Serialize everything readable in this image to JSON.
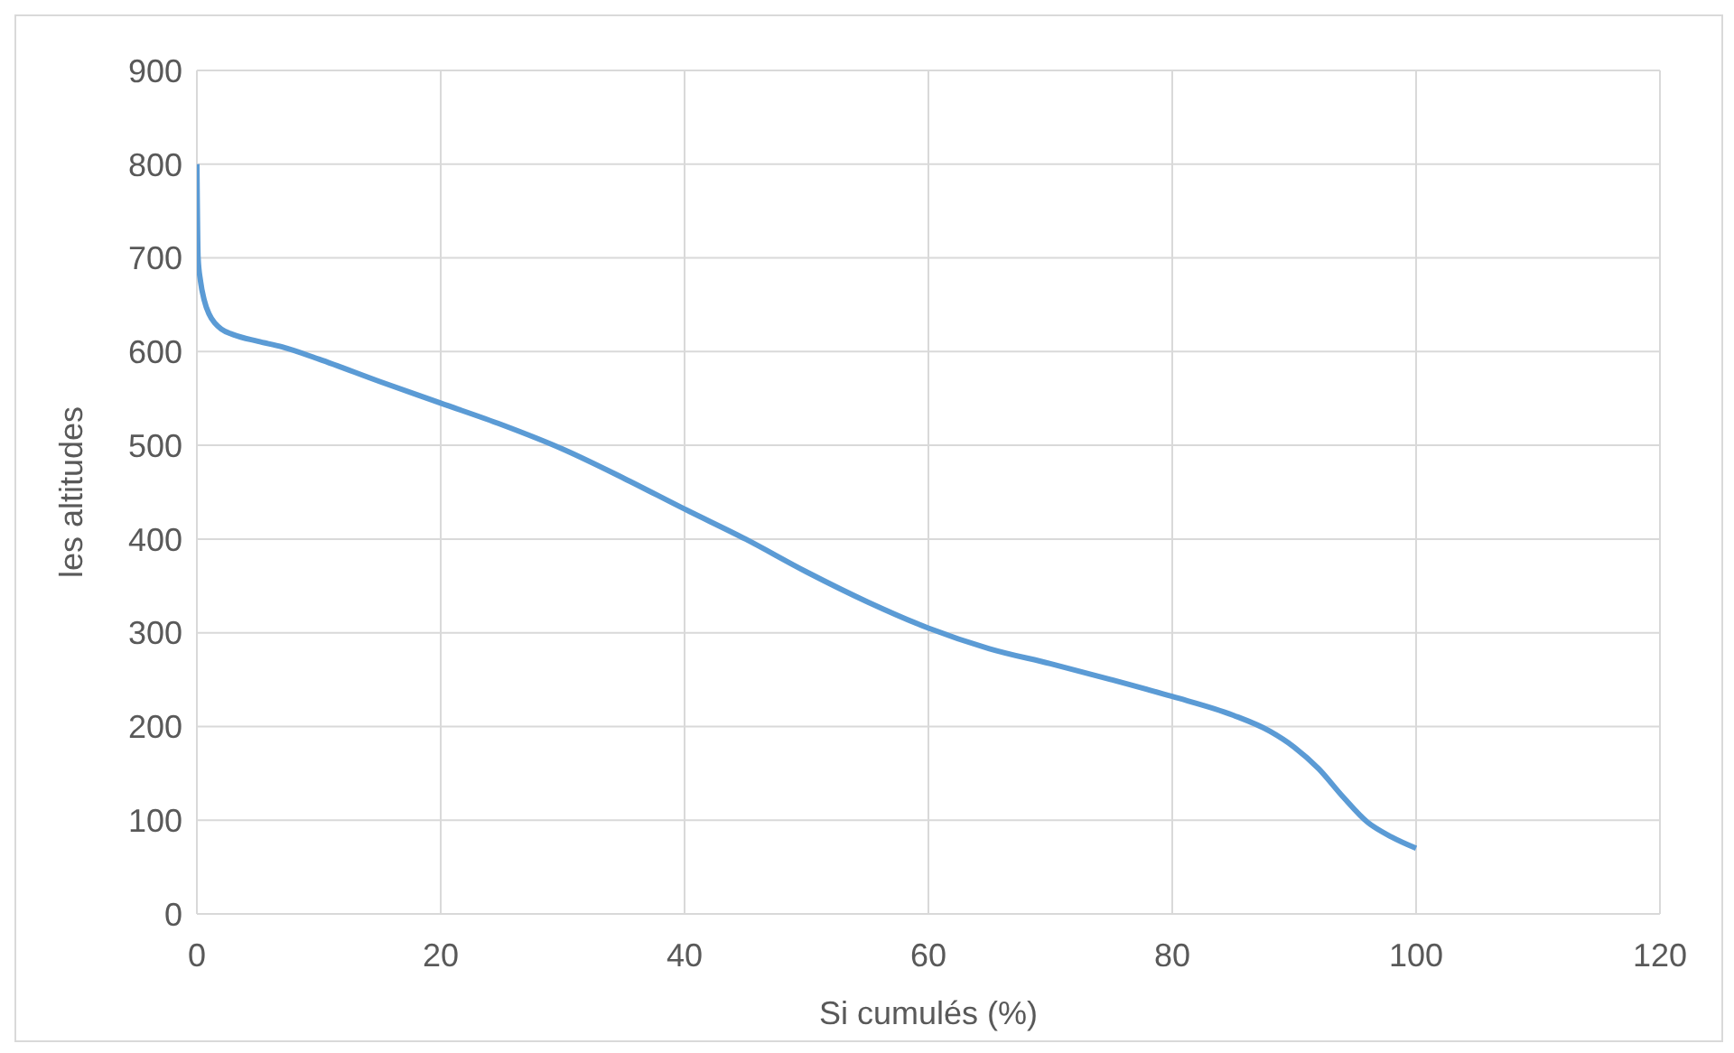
{
  "chart_data": {
    "type": "line",
    "xlabel": "Si cumulés (%)",
    "ylabel": "les altitudes",
    "series": [
      {
        "color": "#5b9bd5",
        "x": [
          0,
          0.1,
          0.3,
          0.6,
          1,
          1.5,
          2,
          3,
          5,
          7,
          10,
          15,
          20,
          25,
          30,
          35,
          40,
          45,
          50,
          55,
          60,
          65,
          70,
          75,
          80,
          85,
          88,
          90,
          92,
          94,
          96,
          98,
          100
        ],
        "values": [
          800,
          700,
          675,
          655,
          640,
          630,
          624,
          618,
          611,
          605,
          592,
          568,
          545,
          522,
          496,
          465,
          432,
          400,
          365,
          333,
          305,
          283,
          267,
          250,
          232,
          212,
          195,
          178,
          155,
          125,
          98,
          82,
          70
        ]
      }
    ],
    "xlim": [
      0,
      120
    ],
    "xticks": [
      0,
      20,
      40,
      60,
      80,
      100,
      120
    ],
    "ylim": [
      0,
      900
    ],
    "yticks": [
      0,
      100,
      200,
      300,
      400,
      500,
      600,
      700,
      800,
      900
    ],
    "grid": true,
    "line_style": "solid",
    "marker": "none"
  }
}
